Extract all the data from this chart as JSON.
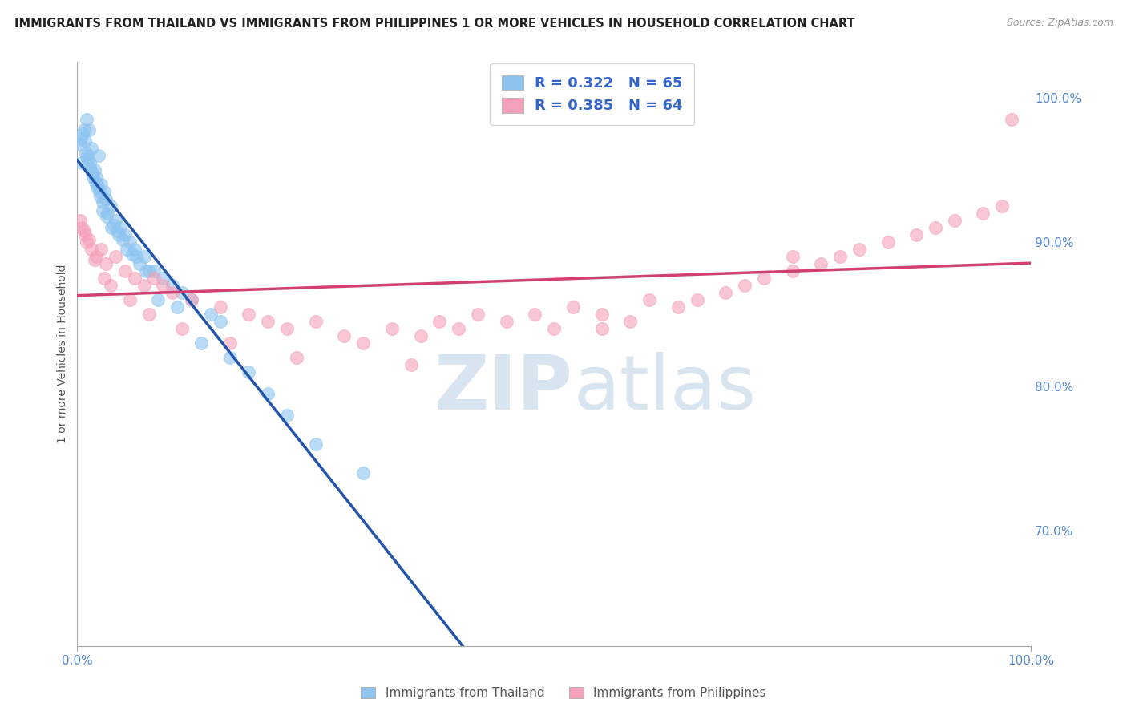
{
  "title": "IMMIGRANTS FROM THAILAND VS IMMIGRANTS FROM PHILIPPINES 1 OR MORE VEHICLES IN HOUSEHOLD CORRELATION CHART",
  "source": "Source: ZipAtlas.com",
  "ylabel": "1 or more Vehicles in Household",
  "xlim": [
    0.0,
    100.0
  ],
  "ylim": [
    62.0,
    102.5
  ],
  "y_ticks": [
    70.0,
    80.0,
    90.0,
    100.0
  ],
  "y_tick_labels": [
    "70.0%",
    "80.0%",
    "90.0%",
    "100.0%"
  ],
  "legend_r1": "R = 0.322",
  "legend_n1": "N = 65",
  "legend_r2": "R = 0.385",
  "legend_n2": "N = 64",
  "thailand_color": "#8dc4f0",
  "philippines_color": "#f5a0b8",
  "thailand_line_color": "#2255aa",
  "philippines_line_color": "#d04070",
  "background_color": "#ffffff",
  "thailand_x": [
    0.5,
    0.8,
    1.0,
    1.2,
    1.5,
    1.8,
    2.0,
    2.2,
    2.5,
    2.8,
    3.0,
    3.5,
    4.0,
    4.5,
    5.0,
    5.5,
    6.0,
    7.0,
    8.0,
    9.0,
    10.0,
    11.0,
    12.0,
    14.0,
    15.0,
    0.3,
    0.6,
    0.9,
    1.1,
    1.3,
    1.6,
    1.9,
    2.1,
    2.4,
    2.7,
    3.2,
    3.8,
    4.2,
    4.8,
    5.8,
    6.5,
    7.5,
    0.4,
    0.7,
    1.05,
    1.35,
    1.65,
    2.05,
    2.35,
    2.65,
    3.1,
    3.6,
    4.3,
    5.2,
    6.2,
    7.2,
    8.5,
    10.5,
    13.0,
    16.0,
    18.0,
    20.0,
    22.0,
    25.0,
    30.0
  ],
  "thailand_y": [
    95.5,
    97.0,
    98.5,
    97.8,
    96.5,
    95.0,
    94.5,
    96.0,
    94.0,
    93.5,
    93.0,
    92.5,
    91.5,
    91.0,
    90.5,
    90.0,
    89.5,
    89.0,
    88.0,
    87.5,
    87.0,
    86.5,
    86.0,
    85.0,
    84.5,
    96.8,
    97.5,
    96.2,
    95.8,
    95.2,
    94.8,
    94.2,
    93.8,
    93.2,
    92.8,
    92.0,
    91.2,
    90.8,
    90.2,
    89.2,
    88.5,
    88.0,
    97.2,
    97.8,
    96.0,
    95.5,
    94.5,
    94.0,
    93.5,
    92.2,
    91.8,
    91.0,
    90.5,
    89.5,
    89.0,
    88.0,
    86.0,
    85.5,
    83.0,
    82.0,
    81.0,
    79.5,
    78.0,
    76.0,
    74.0
  ],
  "philippines_x": [
    0.5,
    0.8,
    1.0,
    1.5,
    2.0,
    2.5,
    3.0,
    4.0,
    5.0,
    6.0,
    7.0,
    8.0,
    9.0,
    10.0,
    12.0,
    15.0,
    18.0,
    20.0,
    22.0,
    25.0,
    28.0,
    30.0,
    33.0,
    36.0,
    38.0,
    40.0,
    42.0,
    45.0,
    48.0,
    50.0,
    52.0,
    55.0,
    58.0,
    60.0,
    63.0,
    65.0,
    68.0,
    70.0,
    72.0,
    75.0,
    78.0,
    80.0,
    82.0,
    85.0,
    88.0,
    90.0,
    92.0,
    95.0,
    97.0,
    98.0,
    0.3,
    0.7,
    1.2,
    1.8,
    2.8,
    3.5,
    5.5,
    7.5,
    11.0,
    16.0,
    23.0,
    35.0,
    55.0,
    75.0
  ],
  "philippines_y": [
    91.0,
    90.5,
    90.0,
    89.5,
    89.0,
    89.5,
    88.5,
    89.0,
    88.0,
    87.5,
    87.0,
    87.5,
    87.0,
    86.5,
    86.0,
    85.5,
    85.0,
    84.5,
    84.0,
    84.5,
    83.5,
    83.0,
    84.0,
    83.5,
    84.5,
    84.0,
    85.0,
    84.5,
    85.0,
    84.0,
    85.5,
    85.0,
    84.5,
    86.0,
    85.5,
    86.0,
    86.5,
    87.0,
    87.5,
    88.0,
    88.5,
    89.0,
    89.5,
    90.0,
    90.5,
    91.0,
    91.5,
    92.0,
    92.5,
    98.5,
    91.5,
    90.8,
    90.2,
    88.8,
    87.5,
    87.0,
    86.0,
    85.0,
    84.0,
    83.0,
    82.0,
    81.5,
    84.0,
    89.0
  ]
}
